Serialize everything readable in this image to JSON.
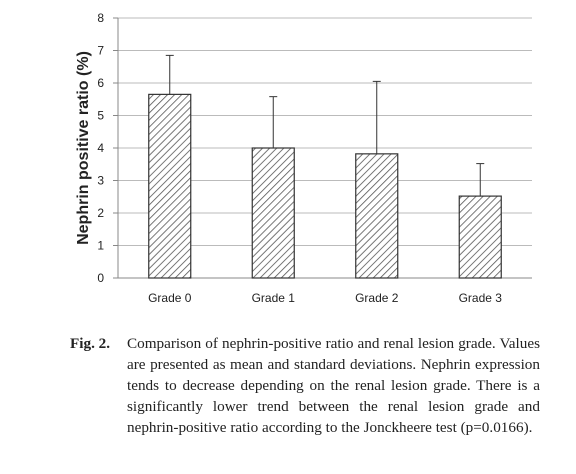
{
  "chart_data": {
    "type": "bar",
    "categories": [
      "Grade 0",
      "Grade 1",
      "Grade 2",
      "Grade 3"
    ],
    "values": [
      5.65,
      4.0,
      3.82,
      2.52
    ],
    "error_bars_upper": [
      6.85,
      5.58,
      6.05,
      3.52
    ],
    "title": "",
    "xlabel": "",
    "ylabel": "Nephrin positive ratio (%)",
    "ylim": [
      0,
      8
    ],
    "yticks": [
      "0",
      "1",
      "2",
      "3",
      "4",
      "5",
      "6",
      "7",
      "8"
    ],
    "grid": true,
    "legend": "none",
    "bar_fill": "diagonal hatch",
    "colors": {
      "bar_stroke": "#333333",
      "hatch": "#555555",
      "grid": "#bbbbbb",
      "axis": "#888888"
    }
  },
  "caption": {
    "label": "Fig. 2.",
    "text": "Comparison of nephrin-positive ratio and renal lesion grade. Values are presented as mean and standard deviations. Nephrin expression tends to decrease depending on the renal lesion grade. There is a significantly lower trend between the renal lesion grade and nephrin-positive ratio according to the Jonckheere test (p=0.0166)."
  }
}
